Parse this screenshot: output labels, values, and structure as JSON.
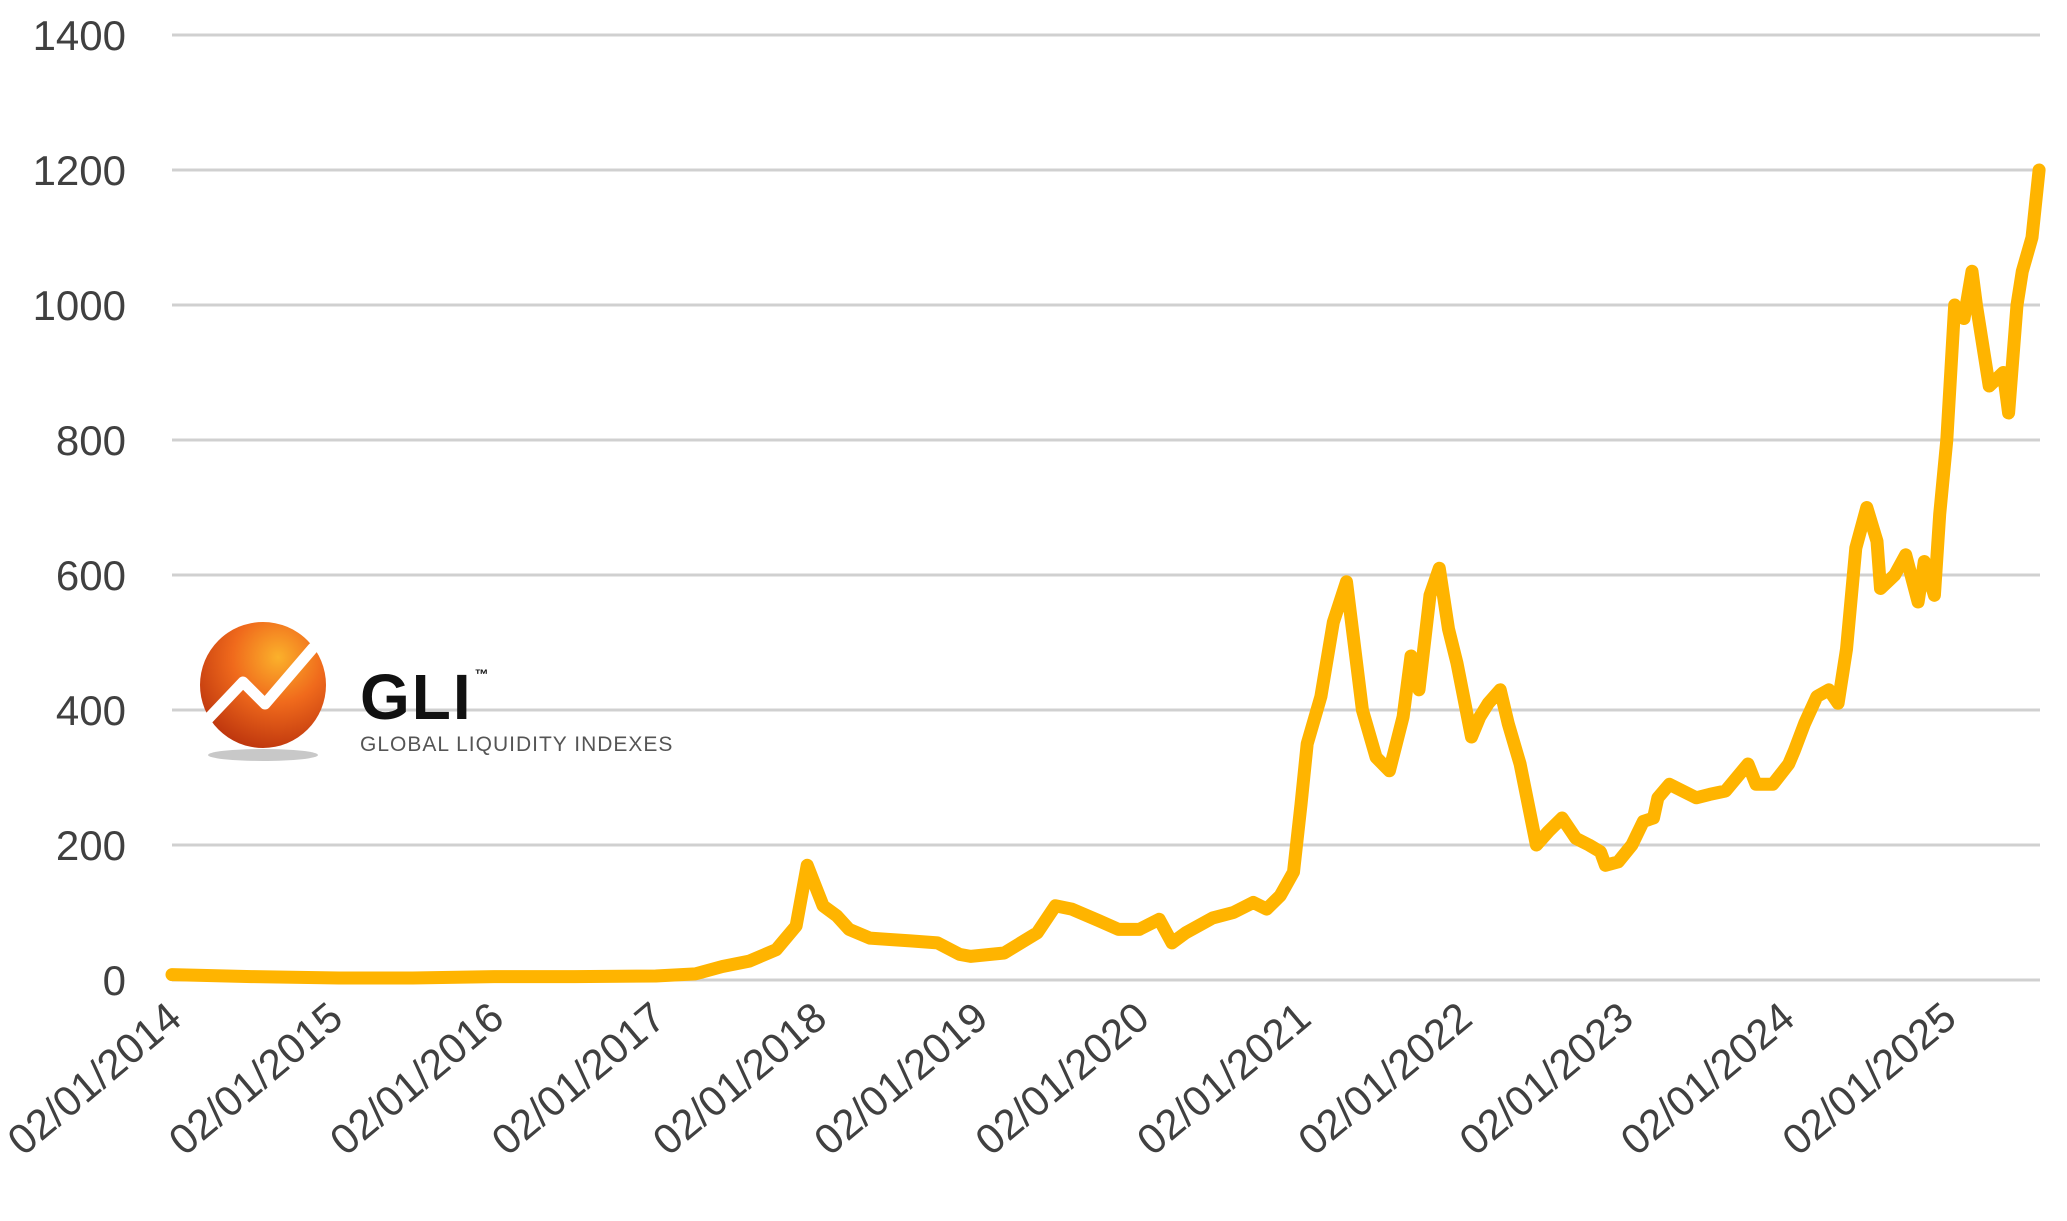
{
  "logo": {
    "name": "GLI",
    "trademark": "™",
    "tagline": "GLOBAL LIQUIDITY INDEXES",
    "icon": "orange-sphere-rising-arrow-icon",
    "colors": {
      "sphere": "#e8501a",
      "highlight": "#f7a623",
      "arrow": "#ffffff"
    }
  },
  "chart_data": {
    "type": "line",
    "title": "",
    "xlabel": "",
    "ylabel": "",
    "ylim": [
      0,
      1400
    ],
    "xlim": [
      "2014-01-02",
      "2025-08-01"
    ],
    "grid": true,
    "legend": "none",
    "line_color": "#ffb400",
    "yticks": [
      0,
      200,
      400,
      600,
      800,
      1000,
      1200,
      1400
    ],
    "xtick_labels": [
      "02/01/2014",
      "02/01/2015",
      "02/01/2016",
      "02/01/2017",
      "02/01/2018",
      "02/01/2019",
      "02/01/2020",
      "02/01/2021",
      "02/01/2022",
      "02/01/2023",
      "02/01/2024",
      "02/01/2025"
    ],
    "xtick_dates": [
      "2014-01-02",
      "2015-01-02",
      "2016-01-02",
      "2017-01-02",
      "2018-01-02",
      "2019-01-02",
      "2020-01-02",
      "2021-01-02",
      "2022-01-02",
      "2023-01-02",
      "2024-01-02",
      "2025-01-02"
    ],
    "series": [
      {
        "x": [
          "2014-01-02",
          "2014-07-01",
          "2015-01-15",
          "2015-07-01",
          "2016-01-01",
          "2016-07-01",
          "2017-01-01",
          "2017-04-01",
          "2017-06-01",
          "2017-08-01",
          "2017-10-01",
          "2017-11-15",
          "2017-12-10",
          "2017-12-25",
          "2018-01-15",
          "2018-02-15",
          "2018-03-15",
          "2018-05-01",
          "2018-06-15",
          "2018-08-01",
          "2018-10-01",
          "2018-11-20",
          "2018-12-15",
          "2019-03-01",
          "2019-05-15",
          "2019-06-25",
          "2019-08-01",
          "2019-10-01",
          "2019-11-15",
          "2020-01-01",
          "2020-02-15",
          "2020-03-15",
          "2020-04-15",
          "2020-06-15",
          "2020-08-01",
          "2020-09-15",
          "2020-10-15",
          "2020-11-15",
          "2020-12-15",
          "2021-01-01",
          "2021-01-15",
          "2021-02-15",
          "2021-03-15",
          "2021-04-14",
          "2021-05-20",
          "2021-06-20",
          "2021-07-20",
          "2021-08-20",
          "2021-09-07",
          "2021-09-25",
          "2021-10-20",
          "2021-11-10",
          "2021-12-01",
          "2021-12-20",
          "2022-01-22",
          "2022-02-10",
          "2022-03-01",
          "2022-03-28",
          "2022-04-15",
          "2022-05-12",
          "2022-06-18",
          "2022-07-15",
          "2022-08-15",
          "2022-09-15",
          "2022-10-15",
          "2022-11-10",
          "2022-11-21",
          "2022-12-20",
          "2023-01-20",
          "2023-02-15",
          "2023-03-10",
          "2023-03-20",
          "2023-04-15",
          "2023-06-15",
          "2023-07-15",
          "2023-08-20",
          "2023-10-10",
          "2023-10-28",
          "2023-12-05",
          "2024-01-10",
          "2024-01-23",
          "2024-02-15",
          "2024-03-14",
          "2024-04-10",
          "2024-05-01",
          "2024-05-20",
          "2024-06-10",
          "2024-07-05",
          "2024-07-28",
          "2024-08-05",
          "2024-09-06",
          "2024-10-01",
          "2024-10-29",
          "2024-11-12",
          "2024-12-05",
          "2024-12-17",
          "2025-01-02",
          "2025-01-20",
          "2025-02-10",
          "2025-02-28",
          "2025-03-10",
          "2025-04-08",
          "2025-05-10",
          "2025-05-22",
          "2025-06-10",
          "2025-06-22",
          "2025-07-14",
          "2025-07-30"
        ],
        "values": [
          8,
          5,
          3,
          3,
          5,
          5,
          6,
          9,
          20,
          28,
          45,
          80,
          170,
          145,
          110,
          95,
          75,
          62,
          60,
          58,
          55,
          38,
          35,
          40,
          70,
          110,
          105,
          88,
          75,
          75,
          90,
          55,
          70,
          92,
          100,
          115,
          105,
          125,
          160,
          260,
          350,
          420,
          530,
          590,
          400,
          330,
          310,
          390,
          480,
          430,
          570,
          610,
          520,
          470,
          360,
          390,
          410,
          430,
          380,
          320,
          200,
          220,
          240,
          210,
          200,
          190,
          170,
          175,
          200,
          235,
          240,
          270,
          290,
          270,
          275,
          280,
          320,
          290,
          290,
          320,
          340,
          380,
          420,
          430,
          410,
          490,
          640,
          700,
          650,
          580,
          600,
          630,
          560,
          620,
          570,
          690,
          800,
          1000,
          980,
          1050,
          1000,
          880,
          900,
          840,
          1000,
          1050,
          1100,
          1200
        ]
      }
    ]
  }
}
